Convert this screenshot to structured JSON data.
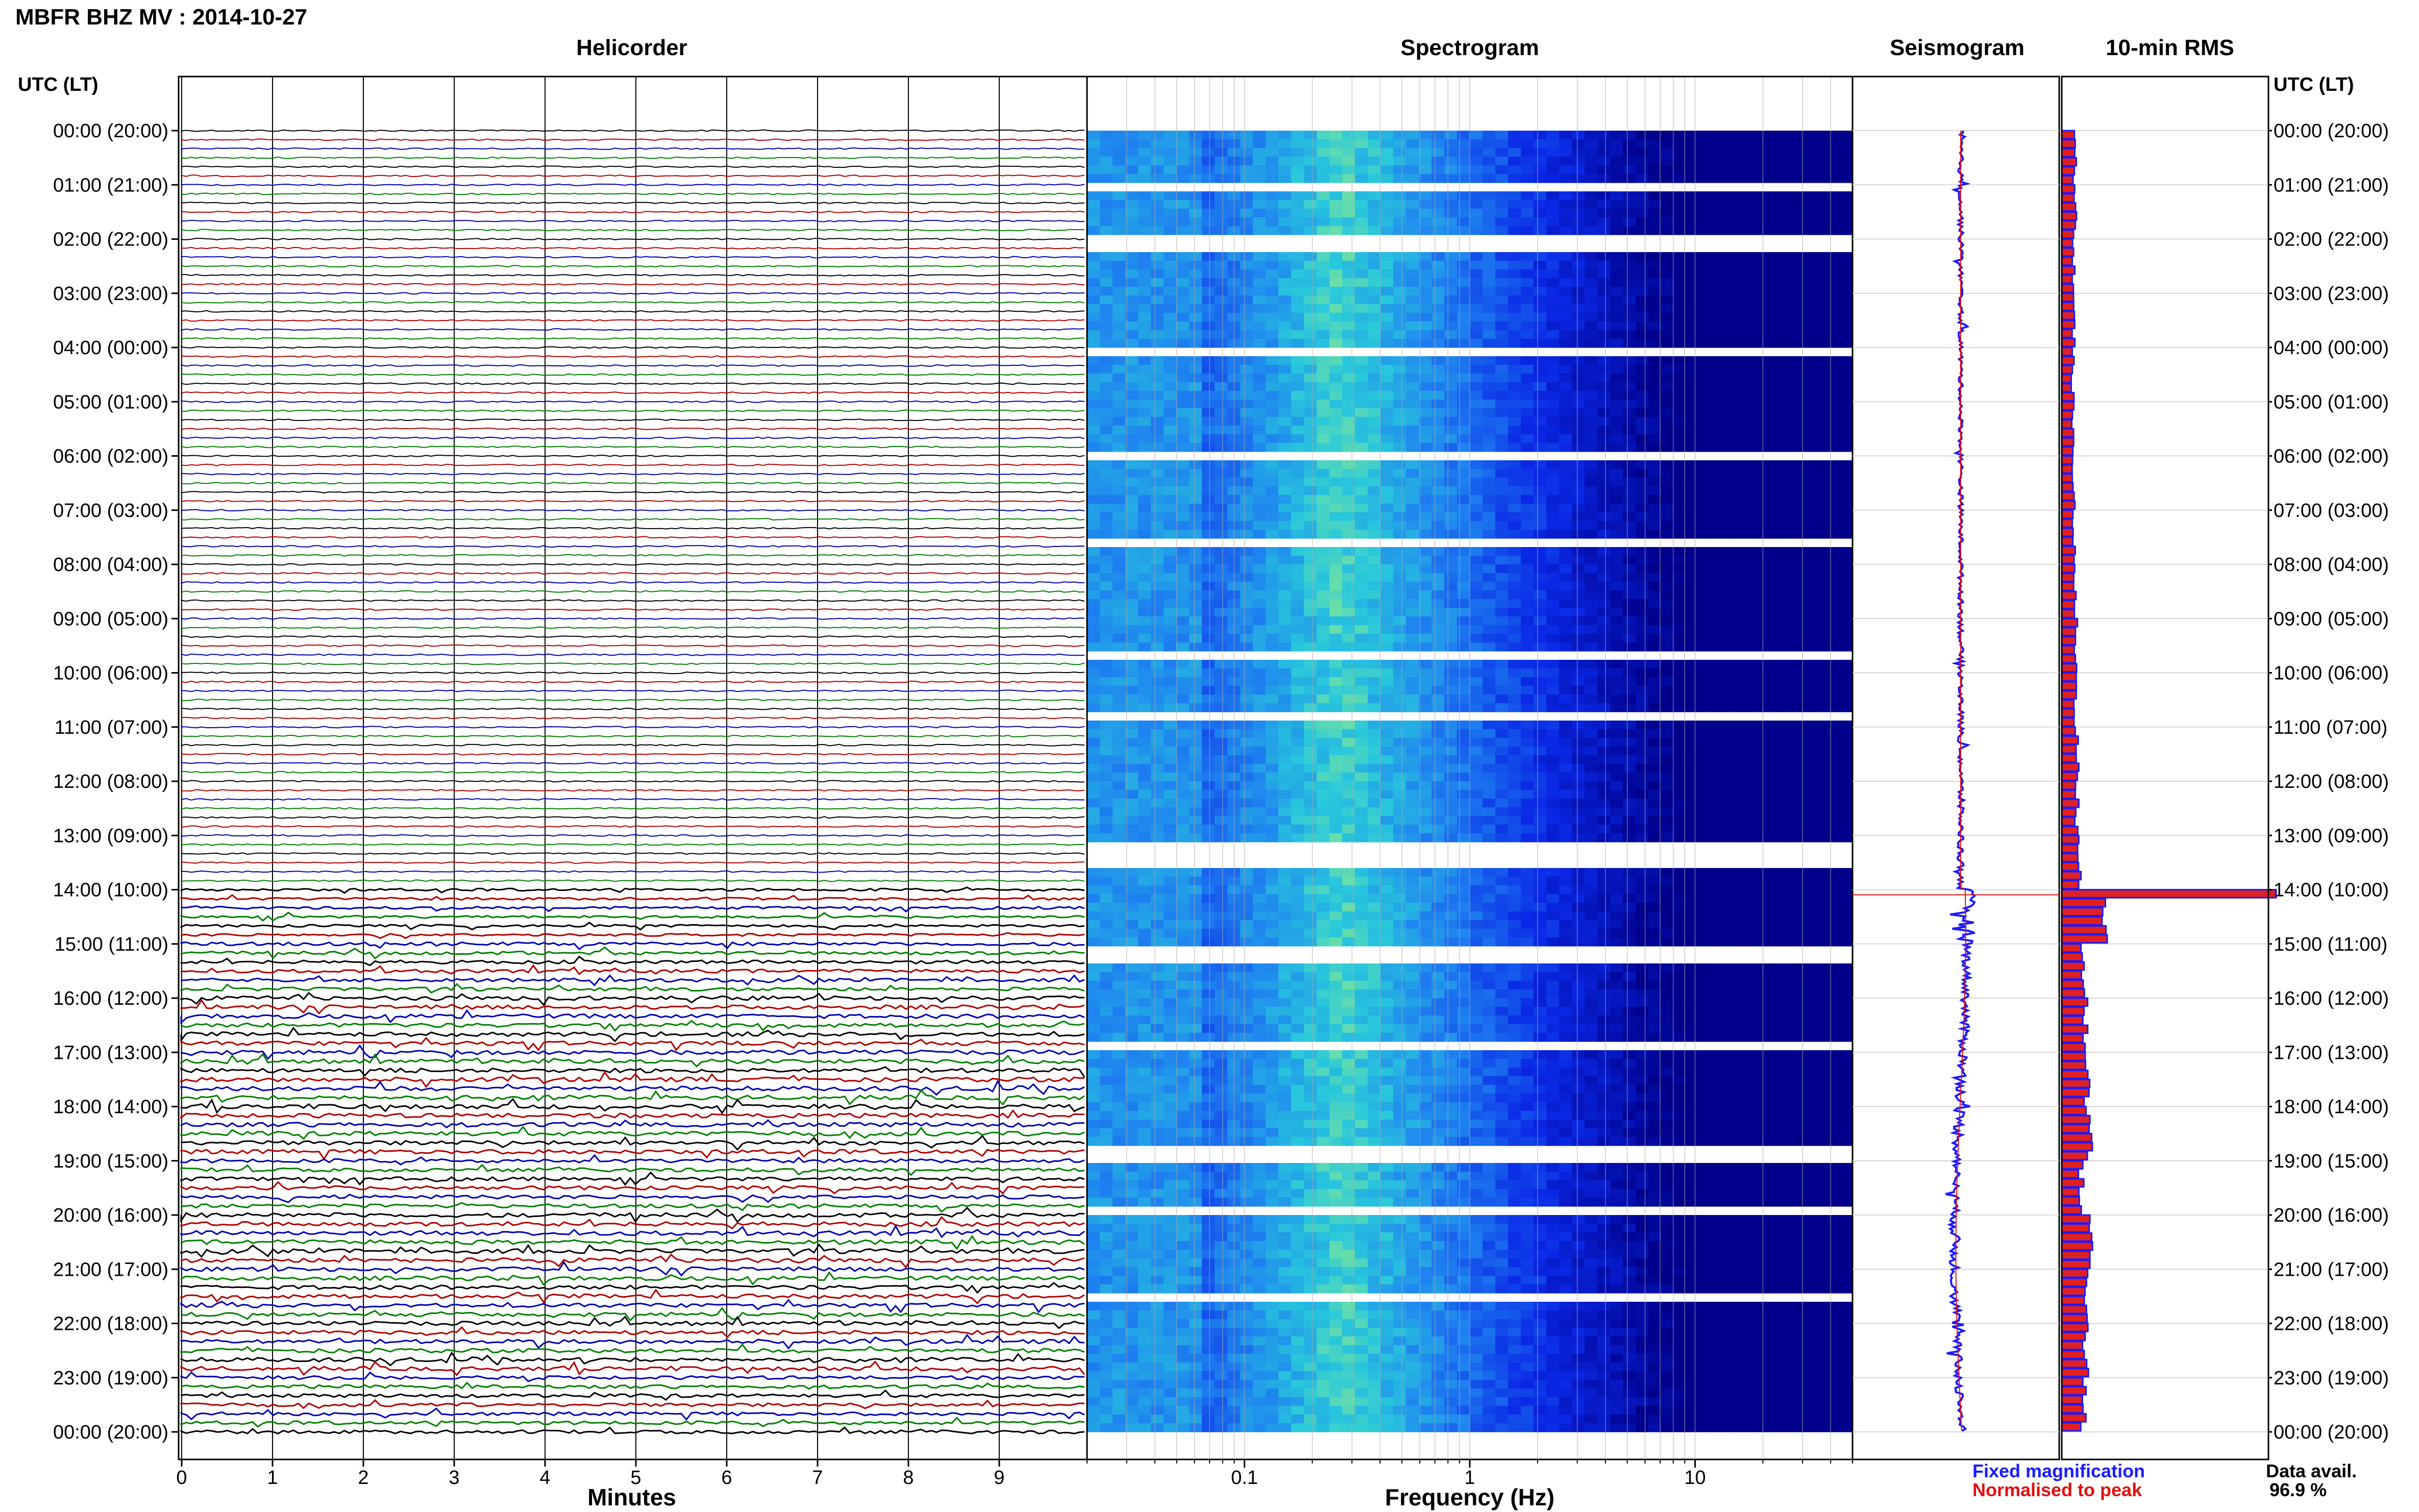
{
  "header": {
    "title": "MBFR BHZ MV : 2014-10-27",
    "axis_left_title": "UTC (LT)",
    "axis_right_title": "UTC (LT)"
  },
  "panels": {
    "helicorder_title": "Helicorder",
    "spectrogram_title": "Spectrogram",
    "seismogram_title": "Seismogram",
    "rms_title": "10-min RMS"
  },
  "footer": {
    "helicorder_xlabel": "Minutes",
    "spectrogram_xlabel": "Frequency (Hz)",
    "legend_fixed": "Fixed magnification",
    "legend_normalised": "Normalised to peak",
    "data_avail_label": "Data avail.",
    "data_avail_value": "96.9 %"
  },
  "colors": {
    "legend_fixed": "#1a1aff",
    "legend_normalised": "#e01010",
    "helicorder_trace_cycle": [
      "#000000",
      "#b00000",
      "#0000b0",
      "#008000"
    ],
    "rms_bar": "#e02020",
    "rms_outline": "#1a1aff",
    "spectrogram_low": "#00008b",
    "spectrogram_high": "#c8ff60"
  },
  "chart_data": [
    {
      "type": "line",
      "name": "helicorder",
      "title": "Helicorder",
      "xlabel": "Minutes",
      "xlim": [
        0,
        10
      ],
      "x_ticks": [
        "0",
        "1",
        "2",
        "3",
        "4",
        "5",
        "6",
        "7",
        "8",
        "9"
      ],
      "y_tick_labels": [
        "00:00 (20:00)",
        "01:00 (21:00)",
        "02:00 (22:00)",
        "03:00 (23:00)",
        "04:00 (00:00)",
        "05:00 (01:00)",
        "06:00 (02:00)",
        "07:00 (03:00)",
        "08:00 (04:00)",
        "09:00 (05:00)",
        "10:00 (06:00)",
        "11:00 (07:00)",
        "12:00 (08:00)",
        "13:00 (09:00)",
        "14:00 (10:00)",
        "15:00 (11:00)",
        "16:00 (12:00)",
        "17:00 (13:00)",
        "18:00 (14:00)",
        "19:00 (15:00)",
        "20:00 (16:00)",
        "21:00 (17:00)",
        "22:00 (18:00)",
        "23:00 (19:00)",
        "00:00 (20:00)"
      ],
      "rows_per_hour": 6,
      "trace_amplitude_by_hour": [
        1,
        1,
        1,
        1,
        1,
        1,
        1,
        1,
        1,
        1,
        1,
        1,
        1,
        1,
        1.6,
        2.2,
        2.6,
        2.8,
        2.8,
        2.4,
        2.8,
        2.6,
        2.6,
        2.2
      ]
    },
    {
      "type": "heatmap",
      "name": "spectrogram",
      "title": "Spectrogram",
      "xlabel": "Frequency (Hz)",
      "x_scale": "log",
      "xlim": [
        0.02,
        50
      ],
      "x_ticks": [
        0.1,
        1,
        10
      ],
      "x_tick_labels": [
        "0.1",
        "1",
        "10"
      ],
      "peak_frequency_hz": 0.27,
      "grid": true
    },
    {
      "type": "line",
      "name": "seismogram",
      "title": "Seismogram",
      "series": [
        {
          "name": "Fixed magnification",
          "color": "#1a1aff"
        },
        {
          "name": "Normalised to peak",
          "color": "#e01010"
        }
      ]
    },
    {
      "type": "bar",
      "name": "rms",
      "title": "10-min RMS",
      "orientation": "horizontal",
      "intervals": 144,
      "hourly_relative_rms": [
        0.06,
        0.06,
        0.055,
        0.055,
        0.05,
        0.05,
        0.055,
        0.055,
        0.06,
        0.065,
        0.065,
        0.07,
        0.07,
        0.08,
        0.2,
        0.1,
        0.11,
        0.12,
        0.13,
        0.09,
        0.13,
        0.12,
        0.11,
        0.1
      ],
      "peak_interval_time": "14:00 (10:00)",
      "peak_relative_rms": 1.0
    }
  ]
}
